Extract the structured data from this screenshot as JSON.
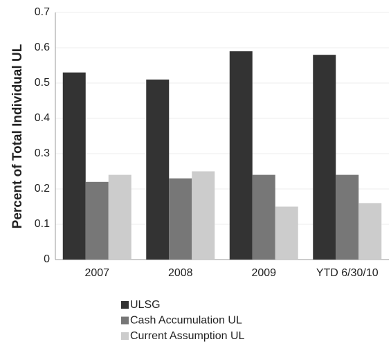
{
  "chart_data": {
    "type": "bar",
    "y_label": "Percent of Total Individual UL",
    "categories": [
      "2007",
      "2008",
      "2009",
      "YTD 6/30/10"
    ],
    "series": [
      {
        "name": "ULSG",
        "color": "#333333",
        "values": [
          0.53,
          0.51,
          0.59,
          0.58
        ]
      },
      {
        "name": "Cash Accumulation UL",
        "color": "#777777",
        "values": [
          0.22,
          0.23,
          0.24,
          0.24
        ]
      },
      {
        "name": "Current Assumption UL",
        "color": "#cccccc",
        "values": [
          0.24,
          0.25,
          0.15,
          0.16
        ]
      }
    ],
    "ylim": [
      0,
      0.7
    ],
    "yticks": [
      0,
      0.1,
      0.2,
      0.3,
      0.4,
      0.5,
      0.6,
      0.7
    ],
    "grid": true,
    "legend": "bottom"
  }
}
